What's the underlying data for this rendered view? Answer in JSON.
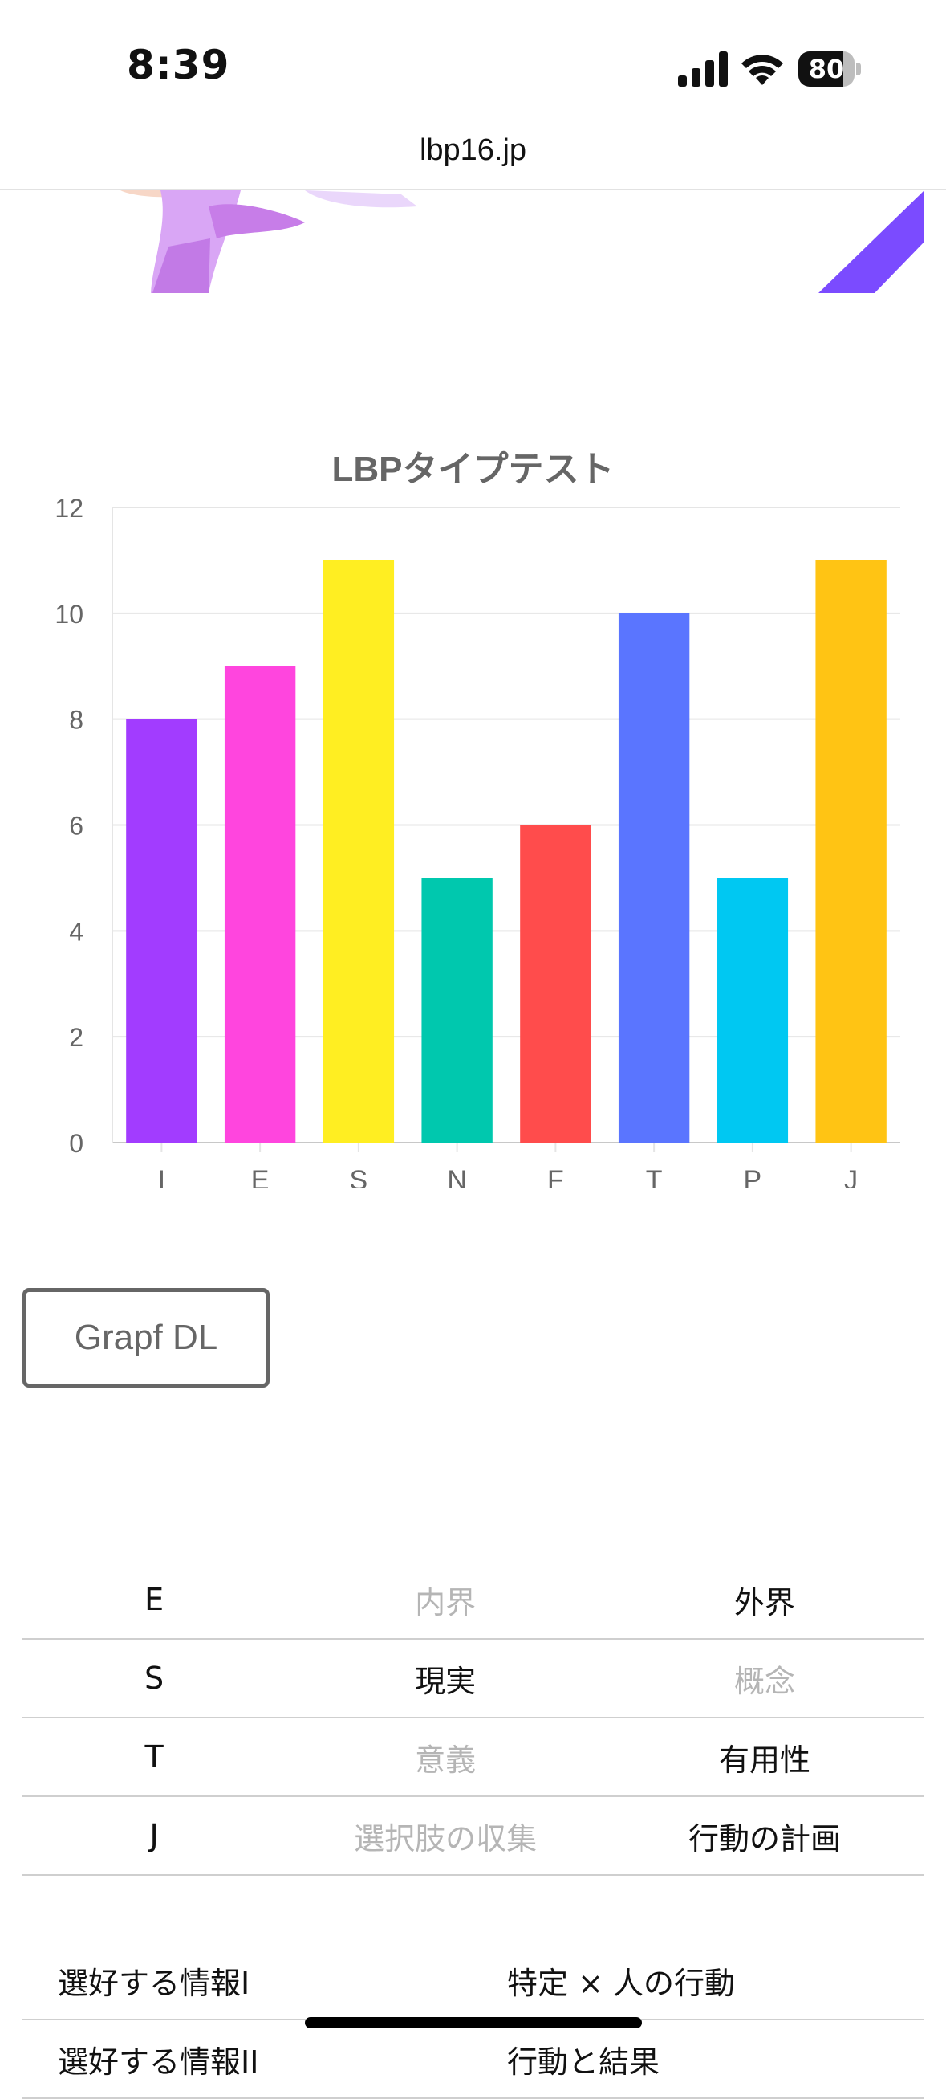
{
  "status_bar": {
    "time": "8:39",
    "battery": "80",
    "battery_level": 0.8
  },
  "browser": {
    "url": "lbp16.jp"
  },
  "colors": {
    "hero_purple": "#d9a6f5",
    "hero_accent": "#7b4bff"
  },
  "chart_data": {
    "type": "bar",
    "title": "LBPタイプテスト",
    "categories": [
      "I",
      "E",
      "S",
      "N",
      "F",
      "T",
      "P",
      "J"
    ],
    "values": [
      8,
      9,
      11,
      5,
      6,
      10,
      5,
      11
    ],
    "colors": [
      "#a23cff",
      "#ff45de",
      "#ffee22",
      "#00c8ae",
      "#ff4c4c",
      "#5a75ff",
      "#00c8f2",
      "#ffc414"
    ],
    "ylim": [
      0,
      12
    ],
    "yticks": [
      "0",
      "2",
      "4",
      "6",
      "8",
      "10",
      "12"
    ],
    "grid": true,
    "legend": "none"
  },
  "buttons": {
    "graph_dl": "Grapf DL"
  },
  "type_rows": [
    {
      "letter": "E",
      "left": "内界",
      "right": "外界",
      "selected": "right"
    },
    {
      "letter": "S",
      "left": "現実",
      "right": "概念",
      "selected": "left"
    },
    {
      "letter": "T",
      "left": "意義",
      "right": "有用性",
      "selected": "right"
    },
    {
      "letter": "J",
      "left": "選択肢の収集",
      "right": "行動の計画",
      "selected": "right"
    }
  ],
  "info_rows": [
    {
      "label": "選好する情報I",
      "value": "特定 × 人の行動"
    },
    {
      "label": "選好する情報II",
      "value": "行動と結果"
    }
  ]
}
